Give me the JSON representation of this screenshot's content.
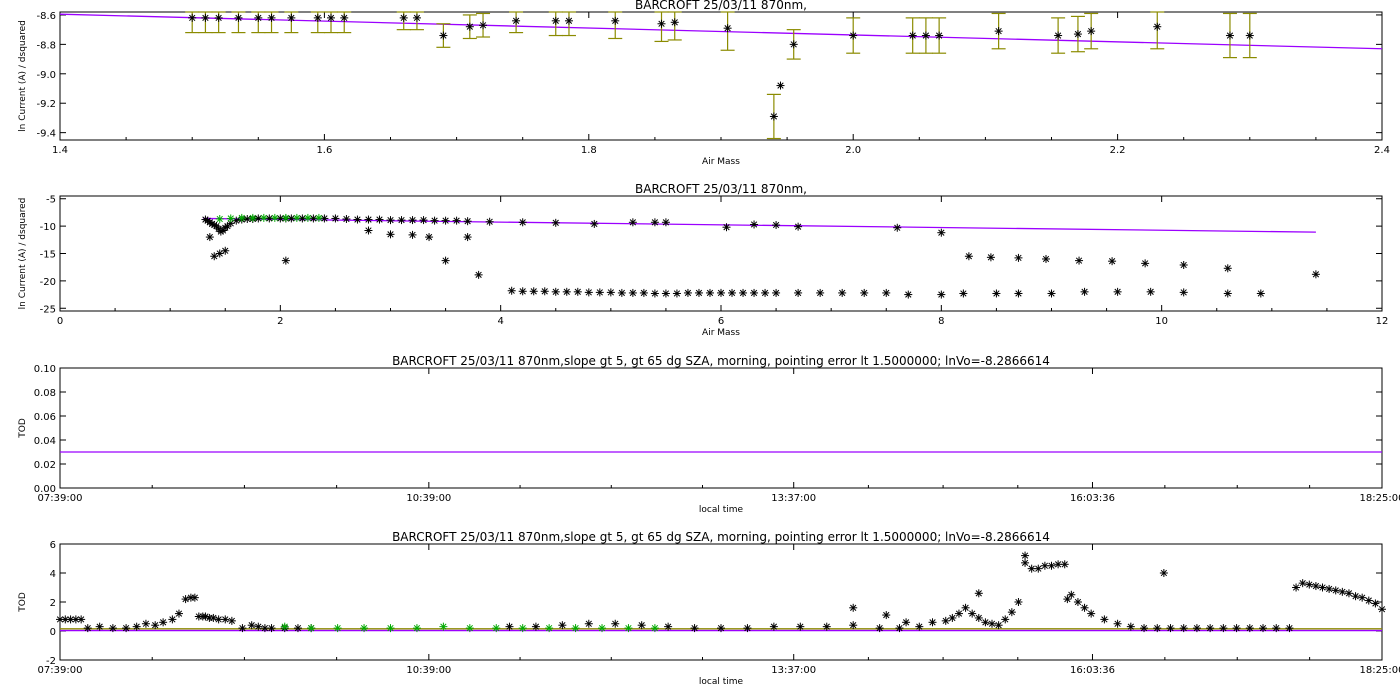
{
  "colors": {
    "fit": "#9b00ff",
    "errorbar": "#8b8b00",
    "points": "#000000",
    "green_points": "#00aa00",
    "olive_line": "#8b8b00",
    "axes": "#000000"
  },
  "chart_data": [
    {
      "type": "scatter",
      "title": "BARCROFT 25/03/11 870nm,",
      "xlabel": "Air Mass",
      "ylabel": "ln Current (A) / dsquared",
      "xlim": [
        1.4,
        2.4
      ],
      "ylim": [
        -9.45,
        -8.58
      ],
      "xticks": [
        1.4,
        1.6,
        1.8,
        2.0,
        2.2,
        2.4
      ],
      "xtick_labels": [
        "1.4",
        "1.6",
        "1.8",
        "2.0",
        "2.2",
        "2.4"
      ],
      "yticks": [
        -8.6,
        -8.8,
        -9.0,
        -9.2,
        -9.4
      ],
      "ytick_labels": [
        "-8.6",
        "-8.8",
        "-9.0",
        "-9.2",
        "-9.4"
      ],
      "series": [
        {
          "marker": "asterisk",
          "error_bars": true,
          "x": [
            1.5,
            1.51,
            1.52,
            1.535,
            1.55,
            1.56,
            1.575,
            1.595,
            1.605,
            1.615,
            1.66,
            1.67,
            1.69,
            1.71,
            1.72,
            1.745,
            1.775,
            1.785,
            1.82,
            1.855,
            1.865,
            1.905,
            1.94,
            1.945,
            1.955,
            2.0,
            2.045,
            2.055,
            2.065,
            2.11,
            2.155,
            2.17,
            2.18,
            2.23,
            2.285,
            2.3
          ],
          "y": [
            -8.62,
            -8.62,
            -8.62,
            -8.62,
            -8.62,
            -8.62,
            -8.62,
            -8.62,
            -8.62,
            -8.62,
            -8.62,
            -8.62,
            -8.74,
            -8.68,
            -8.67,
            -8.64,
            -8.64,
            -8.64,
            -8.64,
            -8.66,
            -8.65,
            -8.69,
            -9.29,
            -9.08,
            -8.8,
            -8.74,
            -8.74,
            -8.74,
            -8.74,
            -8.71,
            -8.74,
            -8.73,
            -8.71,
            -8.68,
            -8.74,
            -8.74
          ],
          "err": [
            0.1,
            0.1,
            0.1,
            0.1,
            0.1,
            0.1,
            0.1,
            0.1,
            0.1,
            0.1,
            0.08,
            0.08,
            0.08,
            0.08,
            0.08,
            0.08,
            0.1,
            0.1,
            0.12,
            0.12,
            0.12,
            0.15,
            0.15,
            0,
            0.1,
            0.12,
            0.12,
            0.12,
            0.12,
            0.12,
            0.12,
            0.12,
            0.12,
            0.15,
            0.15,
            0.15
          ]
        }
      ],
      "fit_line": {
        "x": [
          1.4,
          2.4
        ],
        "y": [
          -8.595,
          -8.83
        ]
      }
    },
    {
      "type": "scatter",
      "title": "BARCROFT 25/03/11 870nm,",
      "xlabel": "Air Mass",
      "ylabel": "ln Current (A) / dsquared",
      "xlim": [
        0,
        12
      ],
      "ylim": [
        -25.5,
        -4.5
      ],
      "xticks": [
        0,
        2,
        4,
        6,
        8,
        10,
        12
      ],
      "xtick_labels": [
        "0",
        "2",
        "4",
        "6",
        "8",
        "10",
        "12"
      ],
      "yticks": [
        -5,
        -10,
        -15,
        -20,
        -25
      ],
      "ytick_labels": [
        "-5",
        "-10",
        "-15",
        "-20",
        "-25"
      ],
      "series": [
        {
          "marker": "asterisk",
          "color": "black",
          "x": [
            1.32,
            1.34,
            1.36,
            1.38,
            1.4,
            1.42,
            1.44,
            1.46,
            1.48,
            1.5,
            1.52,
            1.55,
            1.6,
            1.65,
            1.7,
            1.75,
            1.8,
            1.9,
            2.0,
            2.05,
            2.1,
            2.2,
            2.3,
            2.4,
            2.5,
            2.6,
            2.7,
            2.8,
            2.9,
            3.0,
            3.1,
            3.2,
            3.3,
            3.4,
            3.5,
            3.6,
            3.7,
            3.9,
            4.2,
            4.5,
            4.85,
            5.2,
            5.4,
            5.5,
            6.05,
            6.3,
            6.5,
            6.7,
            7.6,
            8.0,
            1.36,
            1.4,
            1.45,
            1.5,
            2.05,
            2.8,
            3.0,
            3.2,
            3.35,
            3.5,
            3.7,
            3.8,
            4.1,
            4.2,
            4.3,
            4.4,
            4.5,
            4.6,
            4.7,
            4.8,
            4.9,
            5.0,
            5.1,
            5.2,
            5.3,
            5.4,
            5.5,
            5.6,
            5.7,
            5.8,
            5.9,
            6.0,
            6.1,
            6.2,
            6.3,
            6.4,
            6.5,
            6.7,
            6.9,
            7.1,
            7.3,
            7.5,
            7.7,
            8.0,
            8.2,
            8.5,
            8.7,
            9.0,
            9.3,
            9.6,
            9.9,
            10.2,
            10.6,
            10.9,
            8.25,
            8.45,
            8.7,
            8.95,
            9.25,
            9.55,
            9.85,
            10.2,
            10.6,
            11.4
          ],
          "y": [
            -8.8,
            -9.0,
            -9.3,
            -9.6,
            -9.8,
            -10.0,
            -10.5,
            -11.0,
            -10.8,
            -10.3,
            -10.0,
            -9.5,
            -9.0,
            -8.8,
            -8.7,
            -8.7,
            -8.6,
            -8.6,
            -8.6,
            -8.6,
            -8.6,
            -8.6,
            -8.6,
            -8.6,
            -8.6,
            -8.7,
            -8.8,
            -8.8,
            -8.8,
            -8.9,
            -8.9,
            -8.9,
            -8.9,
            -9.0,
            -9.0,
            -9.0,
            -9.1,
            -9.2,
            -9.3,
            -9.4,
            -9.6,
            -9.3,
            -9.3,
            -9.3,
            -10.2,
            -9.7,
            -9.8,
            -10.1,
            -10.3,
            -11.2,
            -12.0,
            -15.5,
            -15.0,
            -14.5,
            -16.3,
            -10.8,
            -11.5,
            -11.6,
            -12.0,
            -16.3,
            -12.0,
            -18.9,
            -21.8,
            -21.9,
            -21.9,
            -21.9,
            -22.0,
            -22.0,
            -22.0,
            -22.1,
            -22.1,
            -22.1,
            -22.2,
            -22.2,
            -22.2,
            -22.3,
            -22.3,
            -22.3,
            -22.2,
            -22.2,
            -22.2,
            -22.2,
            -22.2,
            -22.2,
            -22.2,
            -22.2,
            -22.2,
            -22.2,
            -22.2,
            -22.2,
            -22.2,
            -22.2,
            -22.5,
            -22.5,
            -22.3,
            -22.3,
            -22.3,
            -22.3,
            -22.0,
            -22.0,
            -22.0,
            -22.1,
            -22.3,
            -22.3,
            -15.5,
            -15.7,
            -15.8,
            -16.0,
            -16.3,
            -16.4,
            -16.8,
            -17.1,
            -17.7,
            -18.8
          ]
        },
        {
          "marker": "asterisk",
          "color": "green",
          "x": [
            1.45,
            1.55,
            1.65,
            1.75,
            1.85,
            1.95,
            2.05,
            2.15,
            2.25,
            2.35
          ],
          "y": [
            -8.7,
            -8.6,
            -8.5,
            -8.5,
            -8.5,
            -8.5,
            -8.5,
            -8.5,
            -8.5,
            -8.5
          ]
        }
      ],
      "fit_line": {
        "x": [
          1.3,
          11.4
        ],
        "y": [
          -8.6,
          -11.1
        ]
      }
    },
    {
      "type": "line",
      "title": "BARCROFT 25/03/11 870nm,slope gt 5, gt 65 dg SZA, morning, pointing error lt 1.5000000; lnVo=-8.2866614",
      "xlabel": "local time",
      "ylabel": "TOD",
      "xlim": [
        0,
        1
      ],
      "ylim": [
        0.0,
        0.1
      ],
      "xticks": [
        0,
        0.279,
        0.555,
        0.781,
        1.0
      ],
      "xtick_labels": [
        "07:39:00",
        "10:39:00",
        "13:37:00",
        "16:03:36",
        "18:25:00"
      ],
      "yticks": [
        0.0,
        0.02,
        0.04,
        0.06,
        0.08,
        0.1
      ],
      "ytick_labels": [
        "0.00",
        "0.02",
        "0.04",
        "0.06",
        "0.08",
        "0.10"
      ],
      "series": [
        {
          "x": [
            0,
            1
          ],
          "y": [
            0.03,
            0.03
          ]
        }
      ]
    },
    {
      "type": "scatter",
      "title": "BARCROFT 25/03/11 870nm,slope gt 5, gt 65 dg SZA, morning, pointing error lt 1.5000000; lnVo=-8.2866614",
      "xlabel": "local time",
      "ylabel": "TOD",
      "xlim": [
        0,
        1
      ],
      "ylim": [
        -2,
        6
      ],
      "xticks": [
        0,
        0.279,
        0.555,
        0.781,
        1.0
      ],
      "xtick_labels": [
        "07:39:00",
        "10:39:00",
        "13:37:00",
        "16:03:36",
        "18:25:00"
      ],
      "yticks": [
        -2,
        0,
        2,
        4,
        6
      ],
      "ytick_labels": [
        "-2",
        "0",
        "2",
        "4",
        "6"
      ],
      "series": [
        {
          "marker": "asterisk",
          "color": "black",
          "x": [
            0.0,
            0.004,
            0.008,
            0.012,
            0.016,
            0.021,
            0.03,
            0.04,
            0.05,
            0.058,
            0.065,
            0.072,
            0.078,
            0.085,
            0.09,
            0.095,
            0.099,
            0.102,
            0.105,
            0.108,
            0.11,
            0.113,
            0.116,
            0.12,
            0.125,
            0.13,
            0.138,
            0.145,
            0.15,
            0.155,
            0.16,
            0.17,
            0.18,
            0.19,
            0.34,
            0.36,
            0.38,
            0.4,
            0.42,
            0.44,
            0.46,
            0.48,
            0.5,
            0.52,
            0.54,
            0.56,
            0.58,
            0.6,
            0.62,
            0.635,
            0.64,
            0.65,
            0.66,
            0.67,
            0.675,
            0.68,
            0.685,
            0.69,
            0.695,
            0.7,
            0.705,
            0.71,
            0.715,
            0.72,
            0.725,
            0.73,
            0.735,
            0.74,
            0.745,
            0.75,
            0.755,
            0.76,
            0.765,
            0.77,
            0.775,
            0.78,
            0.79,
            0.8,
            0.81,
            0.82,
            0.83,
            0.84,
            0.85,
            0.86,
            0.87,
            0.88,
            0.89,
            0.9,
            0.91,
            0.92,
            0.93,
            0.935,
            0.94,
            0.945,
            0.95,
            0.955,
            0.96,
            0.965,
            0.97,
            0.975,
            0.98,
            0.985,
            0.99,
            0.995,
            1.0,
            0.6,
            0.625,
            0.695,
            0.73,
            0.762,
            0.835
          ],
          "y": [
            0.8,
            0.8,
            0.8,
            0.8,
            0.8,
            0.2,
            0.3,
            0.2,
            0.2,
            0.3,
            0.5,
            0.4,
            0.6,
            0.8,
            1.2,
            2.2,
            2.3,
            2.3,
            1.0,
            1.0,
            1.0,
            0.9,
            0.9,
            0.8,
            0.8,
            0.7,
            0.2,
            0.4,
            0.3,
            0.2,
            0.2,
            0.2,
            0.2,
            0.2,
            0.3,
            0.3,
            0.4,
            0.5,
            0.5,
            0.4,
            0.3,
            0.2,
            0.2,
            0.2,
            0.3,
            0.3,
            0.3,
            0.4,
            0.2,
            0.2,
            0.6,
            0.3,
            0.6,
            0.7,
            0.9,
            1.2,
            1.6,
            1.2,
            0.9,
            0.6,
            0.5,
            0.4,
            0.8,
            1.3,
            2.0,
            5.2,
            4.3,
            4.3,
            4.5,
            4.5,
            4.6,
            4.6,
            2.5,
            2.0,
            1.6,
            1.2,
            0.8,
            0.5,
            0.3,
            0.2,
            0.2,
            0.2,
            0.2,
            0.2,
            0.2,
            0.2,
            0.2,
            0.2,
            0.2,
            0.2,
            0.2,
            3.0,
            3.3,
            3.2,
            3.1,
            3.0,
            2.9,
            2.8,
            2.7,
            2.6,
            2.4,
            2.3,
            2.1,
            1.9,
            1.5,
            1.6,
            1.1,
            2.6,
            4.7,
            2.2,
            4.0
          ]
        },
        {
          "marker": "asterisk",
          "color": "green",
          "x": [
            0.17,
            0.19,
            0.21,
            0.23,
            0.25,
            0.27,
            0.29,
            0.31,
            0.33,
            0.35,
            0.37,
            0.39,
            0.41,
            0.43,
            0.45
          ],
          "y": [
            0.3,
            0.2,
            0.2,
            0.2,
            0.2,
            0.2,
            0.3,
            0.2,
            0.2,
            0.2,
            0.2,
            0.2,
            0.2,
            0.2,
            0.2
          ]
        }
      ],
      "ref_lines": [
        {
          "y": 0.03,
          "color": "fit"
        },
        {
          "y": 0.15,
          "color": "olive"
        }
      ]
    }
  ]
}
